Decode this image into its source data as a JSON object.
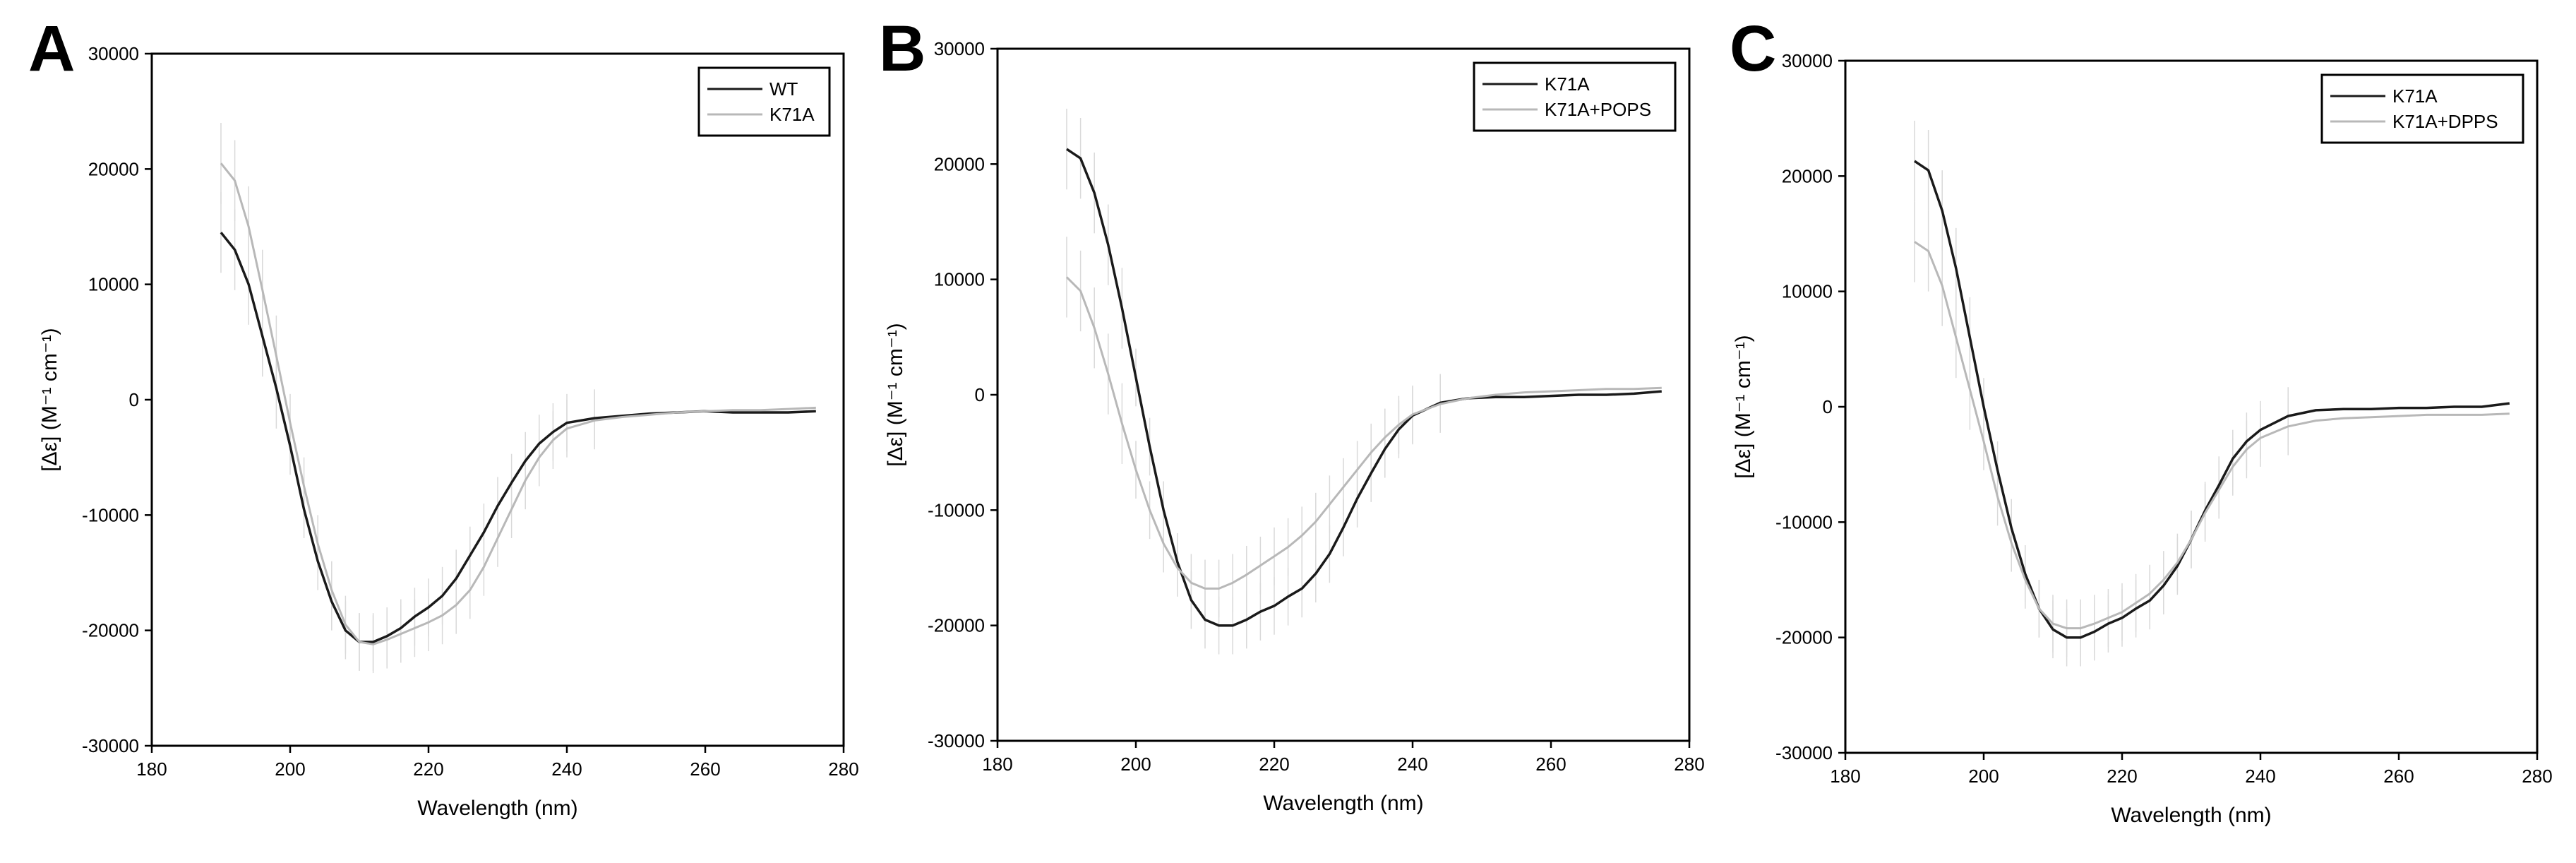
{
  "figure": {
    "colors": {
      "dark_series": "#1a1a1a",
      "light_series": "#b8b8b8",
      "error_bars": "#d9d9d9",
      "axes": "#000000"
    }
  },
  "chart_data": [
    {
      "panel_label": "A",
      "type": "line",
      "xlabel": "Wavelength (nm)",
      "ylabel": "[Δε] (M⁻¹ cm⁻¹)",
      "xlim": [
        180,
        280
      ],
      "ylim": [
        -30000,
        30000
      ],
      "xticks": [
        180,
        200,
        220,
        240,
        260,
        280
      ],
      "yticks": [
        -30000,
        -20000,
        -10000,
        0,
        10000,
        20000,
        30000
      ],
      "legend_position": "top-right",
      "series": [
        {
          "name": "WT",
          "color": "#1a1a1a",
          "x": [
            190,
            192,
            194,
            196,
            198,
            200,
            202,
            204,
            206,
            208,
            210,
            212,
            214,
            216,
            218,
            220,
            222,
            224,
            226,
            228,
            230,
            232,
            234,
            236,
            238,
            240,
            244,
            248,
            252,
            256,
            260,
            264,
            268,
            272,
            276
          ],
          "y": [
            14500,
            13000,
            10000,
            5500,
            1000,
            -4000,
            -9500,
            -14000,
            -17500,
            -20000,
            -21000,
            -21000,
            -20500,
            -19800,
            -18800,
            -18000,
            -17000,
            -15500,
            -13500,
            -11500,
            -9200,
            -7200,
            -5300,
            -3800,
            -2800,
            -2000,
            -1600,
            -1400,
            -1200,
            -1100,
            -1000,
            -1100,
            -1100,
            -1100,
            -1000
          ]
        },
        {
          "name": "K71A",
          "color": "#b8b8b8",
          "x": [
            190,
            192,
            194,
            196,
            198,
            200,
            202,
            204,
            206,
            208,
            210,
            212,
            214,
            216,
            218,
            220,
            222,
            224,
            226,
            228,
            230,
            232,
            234,
            236,
            238,
            240,
            244,
            248,
            252,
            256,
            260,
            264,
            268,
            272,
            276
          ],
          "y": [
            20500,
            19000,
            15000,
            9500,
            3800,
            -2000,
            -7500,
            -12500,
            -16500,
            -19500,
            -21000,
            -21200,
            -20800,
            -20300,
            -19800,
            -19300,
            -18700,
            -17800,
            -16500,
            -14500,
            -12000,
            -9500,
            -7000,
            -5000,
            -3500,
            -2500,
            -1800,
            -1500,
            -1300,
            -1100,
            -1000,
            -900,
            -900,
            -800,
            -700
          ]
        }
      ]
    },
    {
      "panel_label": "B",
      "type": "line",
      "xlabel": "Wavelength (nm)",
      "ylabel": "[Δε] (M⁻¹ cm⁻¹)",
      "xlim": [
        180,
        280
      ],
      "ylim": [
        -30000,
        30000
      ],
      "xticks": [
        180,
        200,
        220,
        240,
        260,
        280
      ],
      "yticks": [
        -30000,
        -20000,
        -10000,
        0,
        10000,
        20000,
        30000
      ],
      "legend_position": "top-right",
      "series": [
        {
          "name": "K71A",
          "color": "#1a1a1a",
          "x": [
            190,
            192,
            194,
            196,
            198,
            200,
            202,
            204,
            206,
            208,
            210,
            212,
            214,
            216,
            218,
            220,
            222,
            224,
            226,
            228,
            230,
            232,
            234,
            236,
            238,
            240,
            244,
            248,
            252,
            256,
            260,
            264,
            268,
            272,
            276
          ],
          "y": [
            21300,
            20500,
            17500,
            13000,
            7500,
            1500,
            -4500,
            -10000,
            -14500,
            -17800,
            -19500,
            -20000,
            -20000,
            -19500,
            -18800,
            -18300,
            -17500,
            -16800,
            -15500,
            -13800,
            -11500,
            -9000,
            -6800,
            -4700,
            -3000,
            -1800,
            -700,
            -300,
            -200,
            -200,
            -100,
            0,
            0,
            100,
            300
          ]
        },
        {
          "name": "K71A+POPS",
          "color": "#b8b8b8",
          "x": [
            190,
            192,
            194,
            196,
            198,
            200,
            202,
            204,
            206,
            208,
            210,
            212,
            214,
            216,
            218,
            220,
            222,
            224,
            226,
            228,
            230,
            232,
            234,
            236,
            238,
            240,
            244,
            248,
            252,
            256,
            260,
            264,
            268,
            272,
            276
          ],
          "y": [
            10200,
            9000,
            5800,
            1800,
            -2500,
            -6500,
            -10000,
            -12900,
            -15000,
            -16300,
            -16800,
            -16800,
            -16300,
            -15600,
            -14800,
            -14000,
            -13200,
            -12200,
            -11000,
            -9500,
            -8000,
            -6500,
            -5000,
            -3700,
            -2600,
            -1700,
            -800,
            -300,
            0,
            200,
            300,
            400,
            500,
            500,
            600
          ]
        }
      ]
    },
    {
      "panel_label": "C",
      "type": "line",
      "xlabel": "Wavelength (nm)",
      "ylabel": "[Δε] (M⁻¹ cm⁻¹)",
      "xlim": [
        180,
        280
      ],
      "ylim": [
        -30000,
        30000
      ],
      "xticks": [
        180,
        200,
        220,
        240,
        260,
        280
      ],
      "yticks": [
        -30000,
        -20000,
        -10000,
        0,
        10000,
        20000,
        30000
      ],
      "legend_position": "top-right",
      "series": [
        {
          "name": "K71A",
          "color": "#1a1a1a",
          "x": [
            190,
            192,
            194,
            196,
            198,
            200,
            202,
            204,
            206,
            208,
            210,
            212,
            214,
            216,
            218,
            220,
            222,
            224,
            226,
            228,
            230,
            232,
            234,
            236,
            238,
            240,
            244,
            248,
            252,
            256,
            260,
            264,
            268,
            272,
            276
          ],
          "y": [
            21300,
            20500,
            17000,
            12000,
            6000,
            0,
            -5500,
            -10500,
            -14500,
            -17500,
            -19300,
            -20000,
            -20000,
            -19500,
            -18800,
            -18300,
            -17500,
            -16800,
            -15500,
            -13800,
            -11500,
            -9000,
            -6800,
            -4500,
            -3000,
            -2000,
            -800,
            -300,
            -200,
            -200,
            -100,
            -100,
            0,
            0,
            300
          ]
        },
        {
          "name": "K71A+DPPS",
          "color": "#b8b8b8",
          "x": [
            190,
            192,
            194,
            196,
            198,
            200,
            202,
            204,
            206,
            208,
            210,
            212,
            214,
            216,
            218,
            220,
            222,
            224,
            226,
            228,
            230,
            232,
            234,
            236,
            238,
            240,
            244,
            248,
            252,
            256,
            260,
            264,
            268,
            272,
            276
          ],
          "y": [
            14300,
            13500,
            10500,
            6000,
            1500,
            -3000,
            -7800,
            -11800,
            -15000,
            -17500,
            -18800,
            -19200,
            -19200,
            -18800,
            -18300,
            -17800,
            -17000,
            -16200,
            -15000,
            -13500,
            -11500,
            -9200,
            -7200,
            -5200,
            -3700,
            -2700,
            -1700,
            -1200,
            -1000,
            -900,
            -800,
            -700,
            -700,
            -700,
            -600
          ]
        }
      ]
    }
  ]
}
